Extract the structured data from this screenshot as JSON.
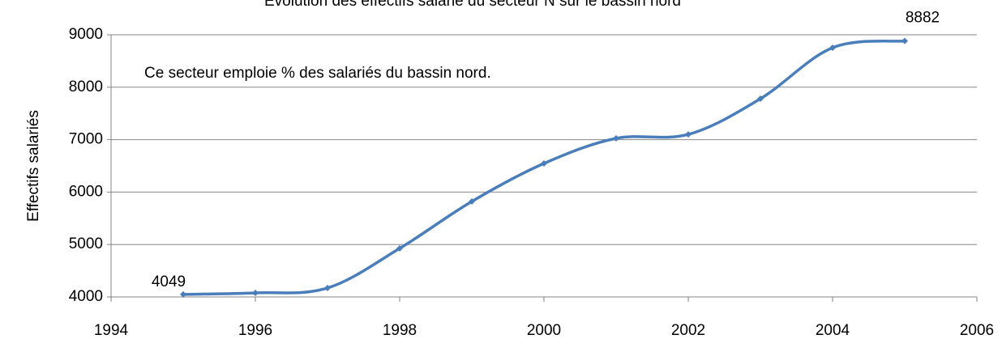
{
  "chart_data": {
    "type": "line",
    "title": "Evolution des effectifs salarié  du secteur N sur le bassin nord",
    "annotation": "Ce secteur emploie % des salariés du bassin nord.",
    "y_label": "Effectifs salariés",
    "x": [
      1995,
      1996,
      1997,
      1998,
      1999,
      2000,
      2001,
      2002,
      2003,
      2004,
      2005
    ],
    "series": [
      {
        "name": "Effectifs salariés",
        "color": "#4a7ebb",
        "values": [
          4049,
          4077,
          4170,
          4926,
          5821,
          6546,
          7025,
          7100,
          7780,
          8753,
          8882
        ]
      }
    ],
    "labeled_points": [
      0,
      10
    ],
    "xlim": [
      1994,
      2006
    ],
    "xticks": [
      1994,
      1996,
      1998,
      2000,
      2002,
      2004,
      2006
    ],
    "ylim": [
      4000,
      9000
    ],
    "yticks": [
      4000,
      5000,
      6000,
      7000,
      8000,
      9000
    ],
    "grid": true
  }
}
